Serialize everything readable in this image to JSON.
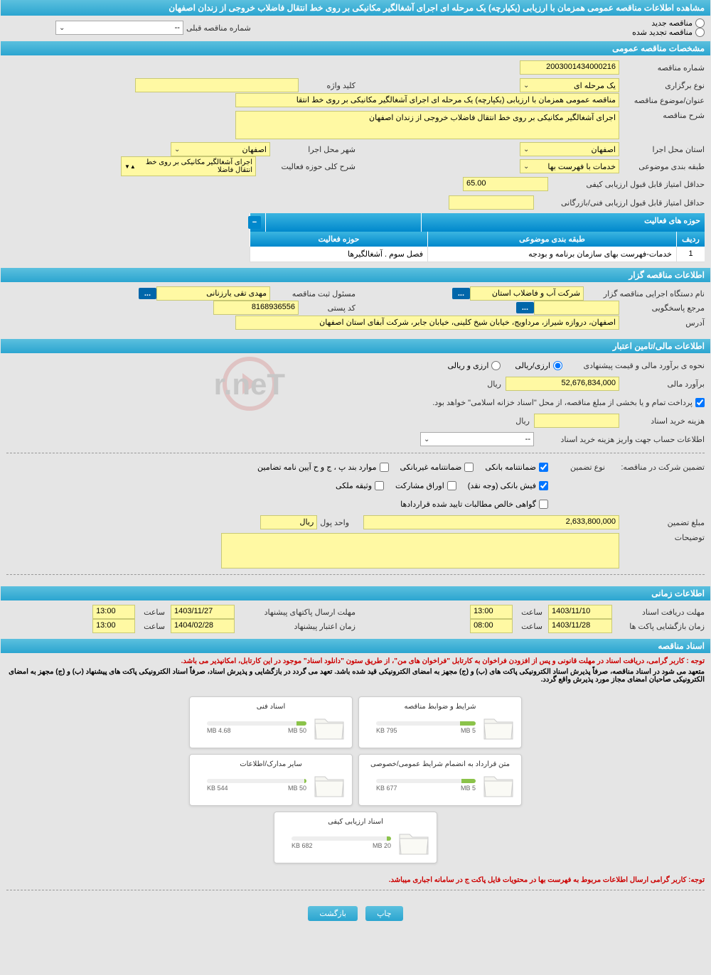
{
  "page_title": "مشاهده اطلاعات مناقصه عمومی همزمان با ارزیابی (یکپارچه) یک مرحله ای اجرای آشغالگیر مکانیکی بر روی خط انتقال فاضلاب خروجی از زندان اصفهان",
  "radio_options": {
    "new": "مناقصه جدید",
    "renewed": "مناقصه تجدید شده",
    "prev_label": "شماره مناقصه قبلی",
    "prev_value": "--"
  },
  "section1": {
    "title": "مشخصات مناقصه عمومی",
    "tender_no_label": "شماره مناقصه",
    "tender_no": "2003001434000216",
    "holding_type_label": "نوع برگزاری",
    "holding_type": "یک مرحله ای",
    "keyword_label": "کلید واژه",
    "keyword": "",
    "subject_label": "عنوان/موضوع مناقصه",
    "subject": "مناقصه عمومی همزمان با ارزیابی (یکپارچه) یک مرحله ای اجرای آشغالگیر مکانیکی  بر روی خط انتقا",
    "desc_label": "شرح مناقصه",
    "desc": "اجرای آشغالگیر مکانیکی  بر روی خط انتقال فاضلاب خروجی از زندان اصفهان",
    "province_label": "استان محل اجرا",
    "province": "اصفهان",
    "city_label": "شهر محل اجرا",
    "city": "اصفهان",
    "category_label": "طبقه بندی موضوعی",
    "category": "خدمات با فهرست بها",
    "scope_label": "شرح کلی حوزه فعالیت",
    "scope": "اجرای آشغالگیر مکانیکی بر روی خط انتقال فاضلا",
    "min_qual_label": "حداقل امتیاز قابل قبول ارزیابی کیفی",
    "min_qual": "65.00",
    "min_tech_label": "حداقل امتیاز قابل قبول ارزیابی فنی/بازرگانی",
    "min_tech": ""
  },
  "activity_table": {
    "title": "حوزه های فعالیت",
    "col_row": "ردیف",
    "col_cat": "طبقه بندی موضوعی",
    "col_scope": "حوزه فعالیت",
    "rows": [
      {
        "n": "1",
        "cat": "خدمات-فهرست بهای سازمان برنامه و بودجه",
        "scope": "فصل سوم . آشغالگیرها"
      }
    ]
  },
  "section2": {
    "title": "اطلاعات مناقصه گزار",
    "org_label": "نام دستگاه اجرایی مناقصه گزار",
    "org": "شرکت آب و فاضلاب استان",
    "reg_officer_label": "مسئول ثبت مناقصه",
    "reg_officer": "مهدی تقی یارزنانی",
    "resp_label": "مرجع پاسخگویی",
    "resp": "",
    "postal_label": "کد پستی",
    "postal": "8168936556",
    "addr_label": "آدرس",
    "addr": "اصفهان، دروازه شیراز، مرداویج، خیابان شیخ کلینی، خیابان جابر، شرکت آبفای استان اصفهان"
  },
  "section3": {
    "title": "اطلاعات مالی/تامین اعتبار",
    "method_label": "نحوه ی برآورد مالی و قیمت پیشنهادی",
    "method_rial": "ارزی/ریالی",
    "method_both": "ارزی و ریالی",
    "estimate_label": "برآورد مالی",
    "estimate": "52,676,834,000",
    "currency": "ریال",
    "payment_note": "پرداخت تمام و یا بخشی از مبلغ مناقصه، از محل \"اسناد خزانه اسلامی\" خواهد بود.",
    "doc_fee_label": "هزینه خرید اسناد",
    "doc_fee_currency": "ریال",
    "account_label": "اطلاعات حساب جهت واریز هزینه خرید اسناد",
    "account_value": "--",
    "guarantee_label": "تضمین شرکت در مناقصه:",
    "guarantee_type_label": "نوع تضمین",
    "g1": "ضمانتنامه بانکی",
    "g2": "ضمانتنامه غیربانکی",
    "g3": "موارد بند پ ، ج و ح آیین نامه تضامین",
    "g4": "فیش بانکی (وجه نقد)",
    "g5": "اوراق مشارکت",
    "g6": "وثیقه ملکی",
    "g7": "گواهی خالص مطالبات تایید شده قراردادها",
    "amount_label": "مبلغ تضمین",
    "amount": "2,633,800,000",
    "unit_label": "واحد پول",
    "unit": "ریال",
    "remarks_label": "توضیحات"
  },
  "section4": {
    "title": "اطلاعات زمانی",
    "receive_label": "مهلت دریافت اسناد",
    "receive_date": "1403/11/10",
    "receive_time_label": "ساعت",
    "receive_time": "13:00",
    "send_label": "مهلت ارسال پاکتهای پیشنهاد",
    "send_date": "1403/11/27",
    "send_time_label": "ساعت",
    "send_time": "13:00",
    "open_label": "زمان بازگشایی پاکت ها",
    "open_date": "1403/11/28",
    "open_time_label": "ساعت",
    "open_time": "08:00",
    "valid_label": "زمان اعتبار پیشنهاد",
    "valid_date": "1404/02/28",
    "valid_time_label": "ساعت",
    "valid_time": "13:00"
  },
  "section5": {
    "title": "اسناد مناقصه",
    "note1": "توجه : کاربر گرامی، دریافت اسناد در مهلت قانونی و پس از افزودن فراخوان به کارتابل \"فراخوان های من\"، از طریق ستون \"دانلود اسناد\" موجود در این کارتابل، امکانپذیر می باشد.",
    "note2": "متعهد می شود در اسناد مناقصه، صرفاً پذیرش اسناد الکترونیکی پاکت های (ب) و (ج) مجهز به امضای الکترونیکی قید شده باشد. تعهد می گردد در بازگشایی و پذیرش اسناد، صرفاً اسناد الکترونیکی پاکت های پیشنهاد (ب) و (ج) مجهز به امضای الکترونیکی صاحبان امضای مجاز مورد پذیرش واقع گردد.",
    "files": [
      {
        "title": "شرایط و ضوابط مناقصه",
        "used": "795 KB",
        "total": "5 MB",
        "pct": 16
      },
      {
        "title": "اسناد فنی",
        "used": "4.68 MB",
        "total": "50 MB",
        "pct": 10
      },
      {
        "title": "متن قرارداد به انضمام شرایط عمومی/خصوصی",
        "used": "677 KB",
        "total": "5 MB",
        "pct": 14
      },
      {
        "title": "سایر مدارک/اطلاعات",
        "used": "544 KB",
        "total": "50 MB",
        "pct": 2
      },
      {
        "title": "اسناد ارزیابی کیفی",
        "used": "682 KB",
        "total": "20 MB",
        "pct": 4
      }
    ],
    "note3": "توجه: کاربر گرامی ارسال اطلاعات مربوط به فهرست بها در محتویات فایل پاکت ج در سامانه اجباری میباشد."
  },
  "buttons": {
    "print": "چاپ",
    "back": "بازگشت"
  },
  "colors": {
    "header_bg": "#2ba5d0",
    "yellow": "#fff9a3",
    "red": "#c00"
  }
}
